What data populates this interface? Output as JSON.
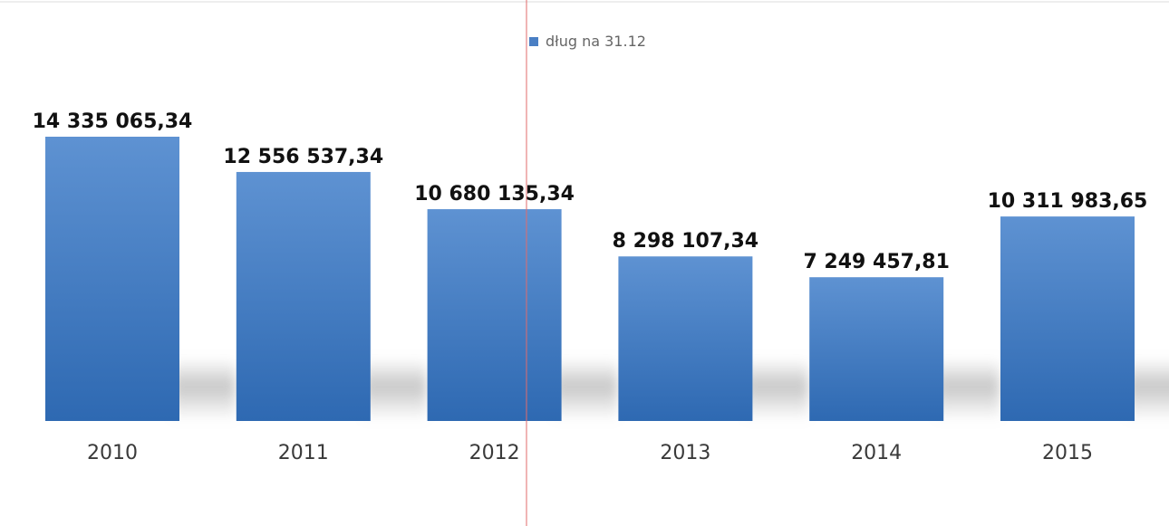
{
  "chart_data": {
    "type": "bar",
    "categories": [
      "2010",
      "2011",
      "2012",
      "2013",
      "2014",
      "2015"
    ],
    "series": [
      {
        "name": "dług na 31.12",
        "values": [
          14335065.34,
          12556537.34,
          10680135.34,
          8298107.34,
          7249457.81,
          10311983.65
        ]
      }
    ],
    "value_labels": [
      "14 335 065,34",
      "12 556 537,34",
      "10 680 135,34",
      "8 298 107,34",
      "7 249 457,81",
      "10 311 983,65"
    ],
    "legend": {
      "label": "dług na 31.12",
      "position": "top-center"
    },
    "title": "",
    "xlabel": "",
    "ylabel": "",
    "ylim": [
      0,
      14335065.34
    ],
    "grid": false,
    "colors": {
      "bar_top": "#5e92d2",
      "bar_bottom": "#2e69b2",
      "label": "#111111",
      "category": "#3a3a3a",
      "legend_text": "#666666",
      "legend_swatch": "#4a7fc4",
      "shadow": "#9a9a9a",
      "cursor_line": "#e26b6b"
    }
  }
}
